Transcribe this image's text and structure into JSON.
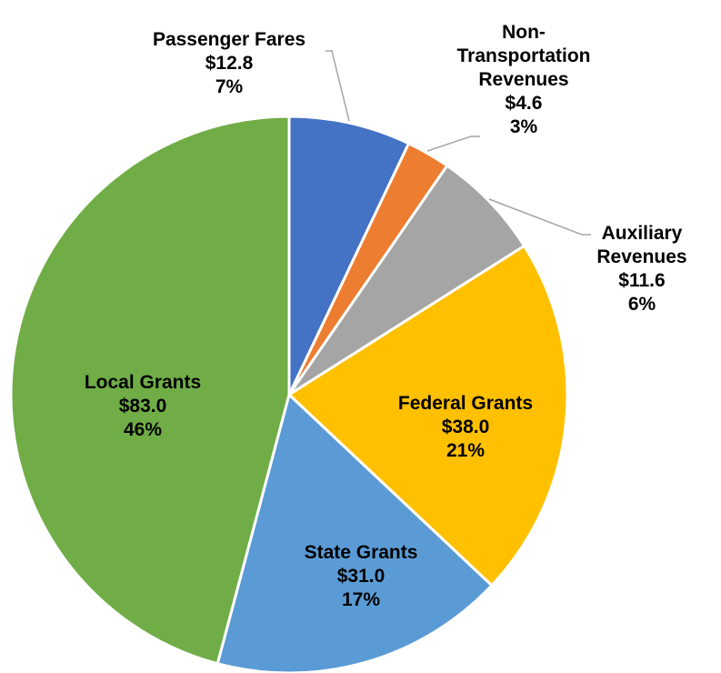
{
  "chart_data": {
    "type": "pie",
    "categories": [
      "Passenger Fares",
      "Non-\nTransportation\nRevenues",
      "Auxiliary\nRevenues",
      "Federal Grants",
      "State Grants",
      "Local Grants"
    ],
    "values": [
      12.8,
      4.6,
      11.6,
      38.0,
      31.0,
      83.0
    ],
    "value_labels": [
      "$12.8",
      "$4.6",
      "$11.6",
      "$38.0",
      "$31.0",
      "$83.0"
    ],
    "percentages": [
      7,
      3,
      6,
      21,
      17,
      46
    ],
    "percentage_labels": [
      "7%",
      "3%",
      "6%",
      "21%",
      "17%",
      "46%"
    ],
    "colors": [
      "#4472c4",
      "#ed7d31",
      "#a5a5a5",
      "#ffc000",
      "#5b9bd5",
      "#70ad47"
    ]
  }
}
